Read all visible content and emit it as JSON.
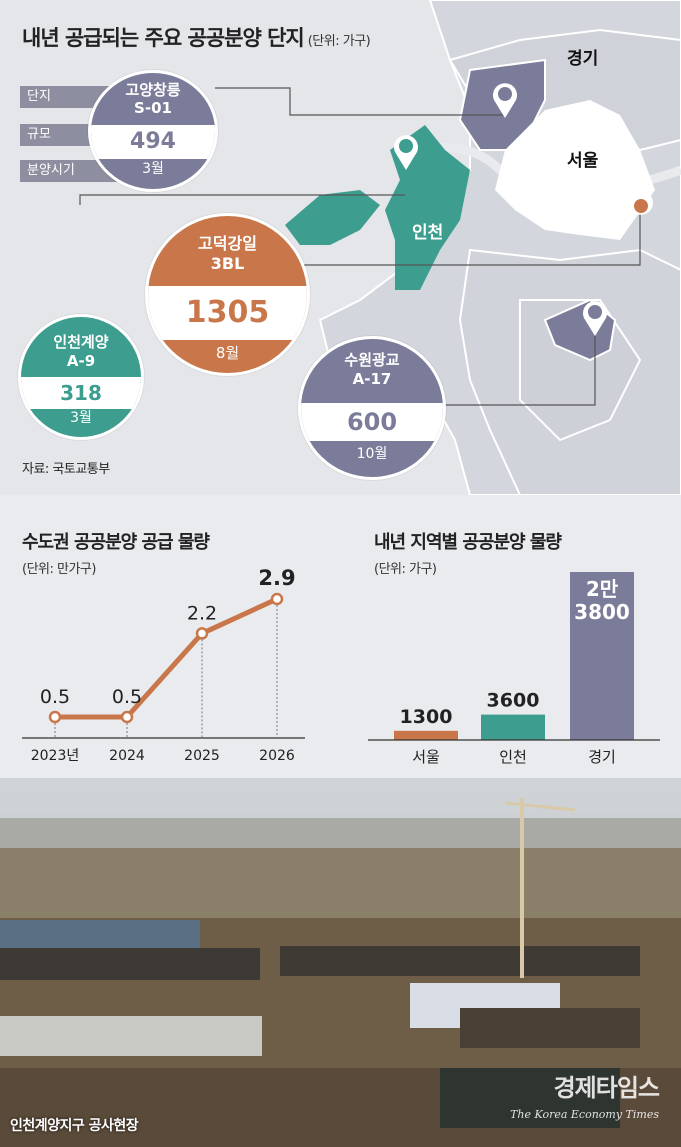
{
  "map": {
    "title": "내년 공급되는 주요 공공분양 단지",
    "unit": "(단위: 가구)",
    "legend": [
      "단지",
      "규모",
      "분양시기"
    ],
    "regions": {
      "gyeonggi": "경기",
      "seoul": "서울",
      "incheon": "인천"
    },
    "source": "자료: 국토교통부",
    "complexes": [
      {
        "name1": "고양창릉",
        "name2": "S-01",
        "units": "494",
        "month": "3월",
        "color": "#7b7c99"
      },
      {
        "name1": "고덕강일",
        "name2": "3BL",
        "units": "1305",
        "month": "8월",
        "color": "#c9774a"
      },
      {
        "name1": "인천계양",
        "name2": "A-9",
        "units": "318",
        "month": "3월",
        "color": "#3d9e8f"
      },
      {
        "name1": "수원광교",
        "name2": "A-17",
        "units": "600",
        "month": "10월",
        "color": "#7b7c99"
      }
    ],
    "colors": {
      "seoul": "#ffffff",
      "incheon": "#3d9e8f",
      "gyeonggi_highlight": "#7b7c99",
      "land": "#d3d6dd",
      "water": "#e8eaee",
      "orange": "#c9774a"
    }
  },
  "chart_data": [
    {
      "type": "line",
      "title": "수도권 공공분양 공급 물량",
      "unit": "(단위: 만가구)",
      "categories": [
        "2023년",
        "2024",
        "2025",
        "2026"
      ],
      "series": [
        {
          "values": [
            0.5,
            0.5,
            2.2,
            2.9
          ]
        }
      ],
      "value_labels": [
        "0.5",
        "0.5",
        "2.2",
        "2.9"
      ],
      "color": "#c9774a"
    },
    {
      "type": "bar",
      "title": "내년 지역별 공공분양 물량",
      "unit": "(단위: 가구)",
      "categories": [
        "서울",
        "인천",
        "경기"
      ],
      "values": [
        1300,
        3600,
        23800
      ],
      "value_labels": [
        "1300",
        "3600",
        "2만 3800"
      ],
      "colors": [
        "#c9774a",
        "#3d9e8f",
        "#7b7c99"
      ]
    }
  ],
  "photo": {
    "caption": "인천계양지구 공사현장",
    "watermark": "경제타임스",
    "watermark_sub": "The Korea Economy Times"
  }
}
